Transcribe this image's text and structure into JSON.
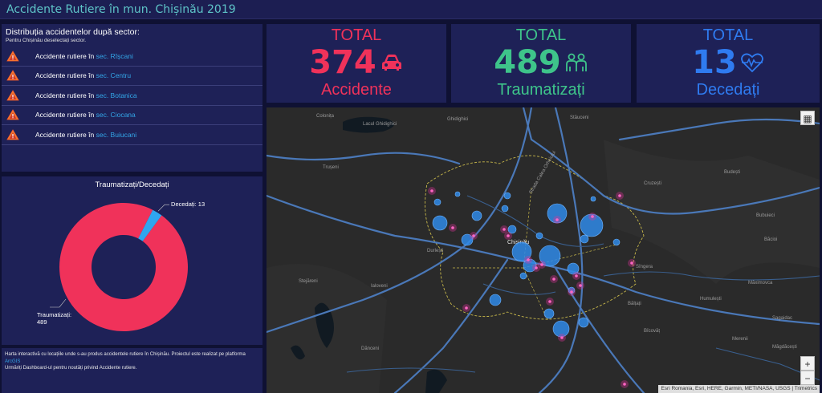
{
  "header": {
    "title": "Accidente Rutiere în mun. Chișinău 2019"
  },
  "sector_panel": {
    "title": "Distribuția accidentelor după sector:",
    "subtitle": "Pentru Chișinău deselectați sector.",
    "items": [
      {
        "prefix": "Accidente rutiere în ",
        "sector": "sec. Rîșcani",
        "icon": "warning-triangle-icon"
      },
      {
        "prefix": "Accidente rutiere în ",
        "sector": "sec. Centru",
        "icon": "warning-triangle-icon"
      },
      {
        "prefix": "Accidente rutiere în ",
        "sector": "sec. Botanica",
        "icon": "warning-triangle-icon"
      },
      {
        "prefix": "Accidente rutiere în ",
        "sector": "sec. Ciocana",
        "icon": "warning-triangle-icon"
      },
      {
        "prefix": "Accidente rutiere în ",
        "sector": "sec. Buiucani",
        "icon": "warning-triangle-icon"
      }
    ]
  },
  "kpis": {
    "accidents": {
      "label": "TOTAL",
      "value": "374",
      "footer": "Accidente",
      "color": "#f0325a",
      "icon": "car-icon"
    },
    "injured": {
      "label": "TOTAL",
      "value": "489",
      "footer": "Traumatizați",
      "color": "#3ec48a",
      "icon": "people-icon"
    },
    "deceased": {
      "label": "TOTAL",
      "value": "13",
      "footer": "Decedați",
      "color": "#2f7bf0",
      "icon": "heartbeat-icon"
    }
  },
  "chart_data": {
    "type": "pie",
    "title": "Traumatizați/Decedați",
    "categories": [
      "Traumatizați",
      "Decedați"
    ],
    "values": [
      489,
      13
    ],
    "colors": [
      "#f0325a",
      "#2fa6f0"
    ],
    "labels": [
      "Traumatizați: 489",
      "Decedați: 13"
    ]
  },
  "info_panel": {
    "text1": "Harta interactivă cu locațiile unde s-au produs accidentele rutiere în Chișinău. Proiectul este realizat pe platforma",
    "link": "ArcGIS",
    "text2": "Urmăriți Dashboard-ul pentru noutăți privind Accidente rutiere."
  },
  "map": {
    "labels": [
      "Colonița",
      "Lacul Ghidighici",
      "Ghidighici",
      "Stăuceni",
      "Trușeni",
      "Budești",
      "Cruzești",
      "Bubuieci",
      "Băcioi",
      "Durlești",
      "Chișinău",
      "Sîngera",
      "Măgdăcești",
      "Dănceni",
      "Humulești",
      "Merenii",
      "Bălțați",
      "Măximovca",
      "Bîcovăț",
      "Stejăreni",
      "Sagaidac",
      "Ialoveni",
      "Strada Calea Orheiului"
    ],
    "attribution": "Esri Romania, Esri, HERE, Garmin, METI/NASA, USGS | Trimetrics",
    "zoom_in": "+",
    "zoom_out": "−",
    "basemap_icon": "basemap-grid-icon"
  }
}
